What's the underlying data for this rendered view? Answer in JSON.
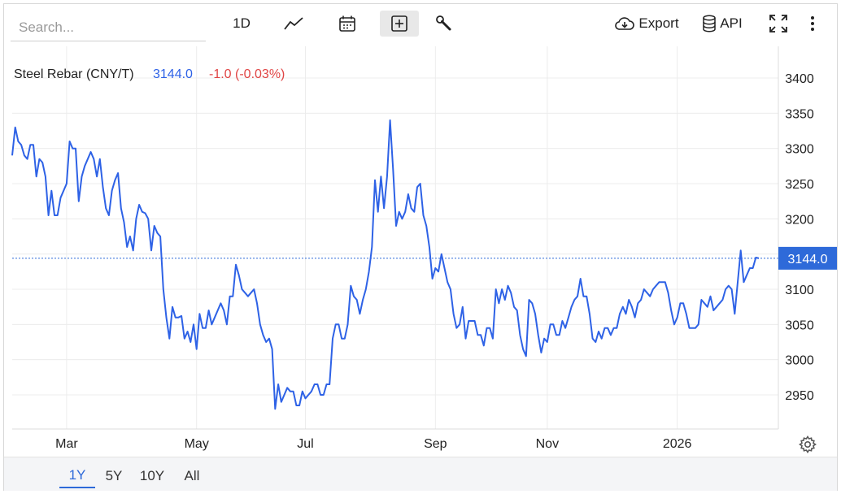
{
  "toolbar": {
    "search_placeholder": "Search...",
    "interval_label": "1D",
    "line_type_icon": "line-chart-icon",
    "calendar_icon": "calendar-icon",
    "compare_icon": "plus-box-icon",
    "tools_icon": "wrench-icon",
    "export_label": "Export",
    "api_label": "API",
    "fullscreen_icon": "fullscreen-icon",
    "more_icon": "more-vertical-icon"
  },
  "legend": {
    "name": "Steel Rebar (CNY/T)",
    "value": "3144.0",
    "change": "-1.0 (-0.03%)"
  },
  "price_tag": "3144.0",
  "range_tabs": [
    {
      "label": "1Y",
      "active": true
    },
    {
      "label": "5Y",
      "active": false
    },
    {
      "label": "10Y",
      "active": false
    },
    {
      "label": "All",
      "active": false
    }
  ],
  "colors": {
    "line": "#2e62e6",
    "negative": "#e04545",
    "accent": "#2e6ad9",
    "grid": "#ececec",
    "axis_text": "#222222"
  },
  "chart_data": {
    "type": "line",
    "title": "Steel Rebar (CNY/T)",
    "xlabel": "",
    "ylabel": "",
    "ylim": [
      2900,
      3450
    ],
    "yticks": [
      2950,
      3000,
      3050,
      3100,
      3150,
      3200,
      3250,
      3300,
      3350,
      3400
    ],
    "xticks": [
      {
        "label": "Mar",
        "index": 18
      },
      {
        "label": "May",
        "index": 61
      },
      {
        "label": "Jul",
        "index": 97
      },
      {
        "label": "Sep",
        "index": 140
      },
      {
        "label": "Nov",
        "index": 177
      },
      {
        "label": "2026",
        "index": 220
      }
    ],
    "grid": true,
    "last_value": 3144.0,
    "series": [
      {
        "values": [
          3290,
          3330,
          3310,
          3305,
          3290,
          3285,
          3305,
          3305,
          3260,
          3285,
          3280,
          3260,
          3205,
          3240,
          3205,
          3205,
          3230,
          3240,
          3250,
          3310,
          3300,
          3300,
          3225,
          3260,
          3275,
          3285,
          3295,
          3285,
          3260,
          3285,
          3245,
          3215,
          3205,
          3240,
          3255,
          3265,
          3215,
          3195,
          3160,
          3175,
          3155,
          3200,
          3220,
          3210,
          3208,
          3200,
          3155,
          3190,
          3180,
          3175,
          3100,
          3060,
          3030,
          3075,
          3060,
          3060,
          3062,
          3030,
          3040,
          3025,
          3050,
          3015,
          3065,
          3045,
          3045,
          3070,
          3050,
          3060,
          3070,
          3080,
          3070,
          3050,
          3090,
          3090,
          3135,
          3120,
          3100,
          3095,
          3090,
          3095,
          3100,
          3080,
          3050,
          3035,
          3025,
          3030,
          3015,
          2930,
          2965,
          2940,
          2950,
          2960,
          2955,
          2955,
          2935,
          2935,
          2955,
          2945,
          2950,
          2955,
          2965,
          2965,
          2950,
          2950,
          2965,
          2965,
          3030,
          3050,
          3050,
          3030,
          3030,
          3050,
          3105,
          3090,
          3085,
          3065,
          3085,
          3100,
          3125,
          3160,
          3255,
          3210,
          3260,
          3215,
          3260,
          3340,
          3270,
          3190,
          3210,
          3200,
          3210,
          3235,
          3215,
          3210,
          3245,
          3250,
          3205,
          3190,
          3160,
          3115,
          3130,
          3125,
          3150,
          3130,
          3110,
          3100,
          3065,
          3045,
          3050,
          3075,
          3030,
          3055,
          3055,
          3055,
          3035,
          3035,
          3020,
          3045,
          3045,
          3030,
          3100,
          3080,
          3100,
          3085,
          3105,
          3095,
          3075,
          3070,
          3035,
          3015,
          3005,
          3085,
          3080,
          3065,
          3035,
          3010,
          3030,
          3025,
          3050,
          3050,
          3035,
          3035,
          3055,
          3045,
          3060,
          3075,
          3085,
          3090,
          3115,
          3090,
          3090,
          3065,
          3030,
          3025,
          3040,
          3030,
          3045,
          3045,
          3035,
          3045,
          3045,
          3065,
          3075,
          3065,
          3085,
          3075,
          3060,
          3080,
          3085,
          3100,
          3095,
          3090,
          3100,
          3105,
          3110,
          3110,
          3110,
          3095,
          3070,
          3050,
          3060,
          3080,
          3080,
          3065,
          3045,
          3045,
          3045,
          3050,
          3085,
          3080,
          3075,
          3090,
          3070,
          3075,
          3080,
          3085,
          3100,
          3105,
          3100,
          3065,
          3110,
          3155,
          3110,
          3120,
          3130,
          3130,
          3145,
          3144
        ]
      }
    ]
  }
}
